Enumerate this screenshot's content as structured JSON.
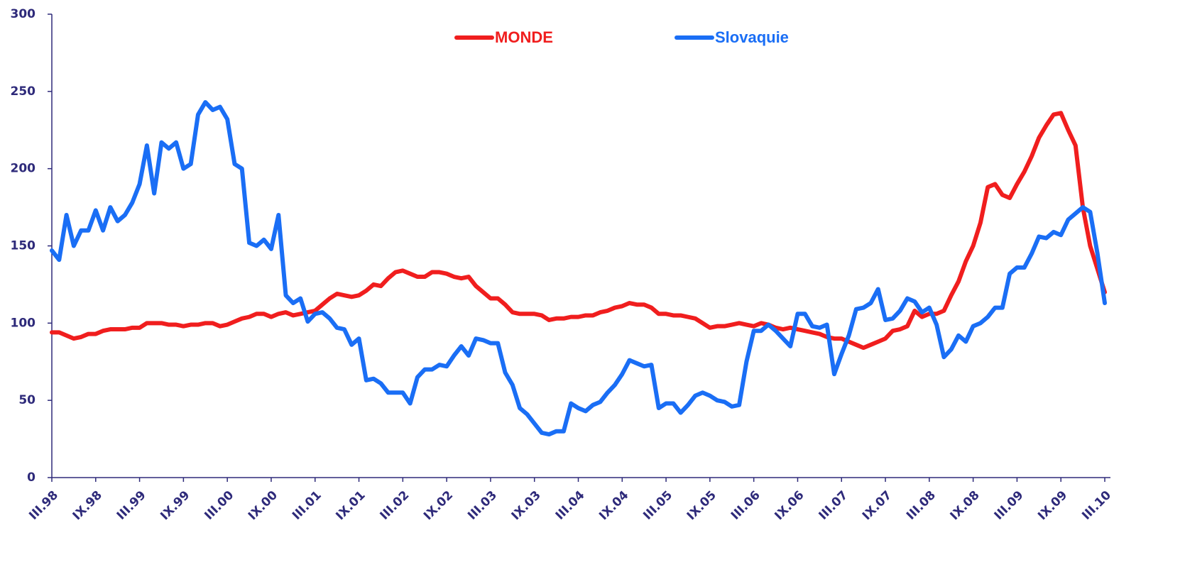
{
  "chart_data": {
    "type": "line",
    "categories": [
      "III.98",
      null,
      null,
      null,
      null,
      null,
      "IX.98",
      null,
      null,
      null,
      null,
      null,
      "III.99",
      null,
      null,
      null,
      null,
      null,
      "IX.99",
      null,
      null,
      null,
      null,
      null,
      "III.00",
      null,
      null,
      null,
      null,
      null,
      "IX.00",
      null,
      null,
      null,
      null,
      null,
      "III.01",
      null,
      null,
      null,
      null,
      null,
      "IX.01",
      null,
      null,
      null,
      null,
      null,
      "III.02",
      null,
      null,
      null,
      null,
      null,
      "IX.02",
      null,
      null,
      null,
      null,
      null,
      "III.03",
      null,
      null,
      null,
      null,
      null,
      "IX.03",
      null,
      null,
      null,
      null,
      null,
      "III.04",
      null,
      null,
      null,
      null,
      null,
      "IX.04",
      null,
      null,
      null,
      null,
      null,
      "III.05",
      null,
      null,
      null,
      null,
      null,
      "IX.05",
      null,
      null,
      null,
      null,
      null,
      "III.06",
      null,
      null,
      null,
      null,
      null,
      "IX.06",
      null,
      null,
      null,
      null,
      null,
      "III.07",
      null,
      null,
      null,
      null,
      null,
      "IX.07",
      null,
      null,
      null,
      null,
      null,
      "III.08",
      null,
      null,
      null,
      null,
      null,
      "IX.08",
      null,
      null,
      null,
      null,
      null,
      "III.09",
      null,
      null,
      null,
      null,
      null,
      "IX.09",
      null,
      null,
      null,
      null,
      null,
      "III.10"
    ],
    "series": [
      {
        "name": "MONDE",
        "color": "#f01e1e",
        "values": [
          94,
          94,
          92,
          90,
          91,
          93,
          93,
          95,
          96,
          96,
          96,
          97,
          97,
          100,
          100,
          100,
          99,
          99,
          98,
          99,
          99,
          100,
          100,
          98,
          99,
          101,
          103,
          104,
          106,
          106,
          104,
          106,
          107,
          105,
          106,
          107,
          108,
          112,
          116,
          119,
          118,
          117,
          118,
          121,
          125,
          124,
          129,
          133,
          134,
          132,
          130,
          130,
          133,
          133,
          132,
          130,
          129,
          130,
          124,
          120,
          116,
          116,
          112,
          107,
          106,
          106,
          106,
          105,
          102,
          103,
          103,
          104,
          104,
          105,
          105,
          107,
          108,
          110,
          111,
          113,
          112,
          112,
          110,
          106,
          106,
          105,
          105,
          104,
          103,
          100,
          97,
          98,
          98,
          99,
          100,
          99,
          98,
          100,
          99,
          97,
          96,
          97,
          96,
          95,
          94,
          93,
          91,
          90,
          90,
          88,
          86,
          84,
          86,
          88,
          90,
          95,
          96,
          98,
          108,
          104,
          106,
          106,
          108,
          118,
          127,
          140,
          150,
          165,
          188,
          190,
          183,
          181,
          190,
          198,
          208,
          220,
          228,
          235,
          236,
          225,
          215,
          175,
          150,
          135,
          120
        ]
      },
      {
        "name": "Slovaquie",
        "color": "#1a6ef5",
        "values": [
          147,
          141,
          170,
          150,
          160,
          160,
          173,
          160,
          175,
          166,
          170,
          178,
          190,
          215,
          184,
          217,
          213,
          217,
          200,
          203,
          235,
          243,
          238,
          240,
          232,
          203,
          200,
          152,
          150,
          154,
          148,
          170,
          118,
          113,
          116,
          101,
          106,
          107,
          103,
          97,
          96,
          86,
          90,
          63,
          64,
          61,
          55,
          55,
          55,
          48,
          65,
          70,
          70,
          73,
          72,
          79,
          85,
          79,
          90,
          89,
          87,
          87,
          68,
          60,
          45,
          41,
          35,
          29,
          28,
          30,
          30,
          48,
          45,
          43,
          47,
          49,
          55,
          60,
          67,
          76,
          74,
          72,
          73,
          45,
          48,
          48,
          42,
          47,
          53,
          55,
          53,
          50,
          49,
          46,
          47,
          75,
          95,
          95,
          99,
          95,
          90,
          85,
          106,
          106,
          98,
          97,
          99,
          67,
          80,
          92,
          109,
          110,
          113,
          122,
          102,
          103,
          108,
          116,
          114,
          107,
          110,
          99,
          78,
          83,
          92,
          88,
          98,
          100,
          104,
          110,
          110,
          132,
          136,
          136,
          145,
          156,
          155,
          159,
          157,
          167,
          171,
          175,
          172,
          145,
          113
        ]
      }
    ],
    "ylim": [
      0,
      300
    ],
    "yticks": [
      0,
      50,
      100,
      150,
      200,
      250,
      300
    ],
    "grid": false
  }
}
